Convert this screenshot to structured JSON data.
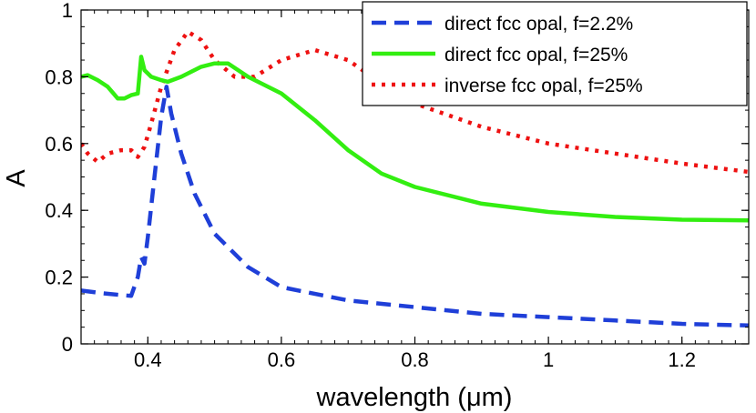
{
  "chart_data": {
    "type": "line",
    "xlabel": "wavelength (μm)",
    "ylabel": "A",
    "xlim": [
      0.3,
      1.3
    ],
    "ylim": [
      0,
      1
    ],
    "xticks": [
      0.4,
      0.6,
      0.8,
      1.0,
      1.2
    ],
    "xtick_labels": [
      "0.4",
      "0.6",
      "0.8",
      "1",
      "1.2"
    ],
    "yticks": [
      0,
      0.2,
      0.4,
      0.6,
      0.8,
      1.0
    ],
    "ytick_labels": [
      "0",
      "0.2",
      "0.4",
      "0.6",
      "0.8",
      "1"
    ],
    "grid": false,
    "legend_position": "top-right",
    "series": [
      {
        "name": "direct fcc opal, f=2.2%",
        "color": "#1f3fd8",
        "style": "dashed",
        "x": [
          0.3,
          0.33,
          0.36,
          0.375,
          0.385,
          0.39,
          0.395,
          0.4,
          0.41,
          0.42,
          0.428,
          0.435,
          0.45,
          0.47,
          0.5,
          0.55,
          0.6,
          0.7,
          0.8,
          0.9,
          1.0,
          1.1,
          1.2,
          1.3
        ],
        "values": [
          0.16,
          0.152,
          0.146,
          0.144,
          0.2,
          0.26,
          0.24,
          0.32,
          0.5,
          0.68,
          0.77,
          0.69,
          0.57,
          0.45,
          0.33,
          0.23,
          0.17,
          0.13,
          0.11,
          0.09,
          0.08,
          0.07,
          0.06,
          0.055
        ]
      },
      {
        "name": "direct fcc opal, f=25%",
        "color": "#33ee11",
        "style": "solid",
        "x": [
          0.3,
          0.31,
          0.325,
          0.34,
          0.355,
          0.365,
          0.375,
          0.385,
          0.39,
          0.395,
          0.405,
          0.42,
          0.43,
          0.45,
          0.48,
          0.5,
          0.52,
          0.55,
          0.6,
          0.65,
          0.7,
          0.75,
          0.8,
          0.9,
          1.0,
          1.1,
          1.2,
          1.3
        ],
        "values": [
          0.8,
          0.805,
          0.79,
          0.77,
          0.735,
          0.735,
          0.745,
          0.75,
          0.86,
          0.82,
          0.8,
          0.79,
          0.785,
          0.8,
          0.83,
          0.84,
          0.84,
          0.8,
          0.75,
          0.67,
          0.58,
          0.51,
          0.47,
          0.42,
          0.395,
          0.38,
          0.372,
          0.37
        ]
      },
      {
        "name": "inverse fcc opal, f=25%",
        "color": "#ee1111",
        "style": "dotted",
        "x": [
          0.3,
          0.31,
          0.325,
          0.34,
          0.36,
          0.375,
          0.385,
          0.395,
          0.405,
          0.42,
          0.44,
          0.46,
          0.48,
          0.5,
          0.53,
          0.56,
          0.6,
          0.65,
          0.7,
          0.75,
          0.8,
          0.9,
          1.0,
          1.1,
          1.2,
          1.3
        ],
        "values": [
          0.6,
          0.57,
          0.545,
          0.57,
          0.58,
          0.58,
          0.56,
          0.59,
          0.66,
          0.77,
          0.88,
          0.935,
          0.91,
          0.85,
          0.8,
          0.8,
          0.85,
          0.88,
          0.85,
          0.78,
          0.72,
          0.65,
          0.6,
          0.57,
          0.54,
          0.515
        ]
      }
    ]
  }
}
